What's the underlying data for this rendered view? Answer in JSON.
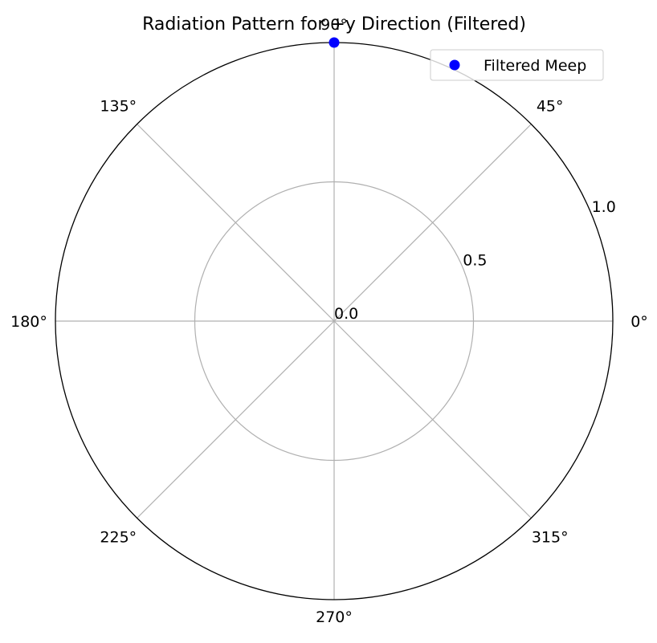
{
  "chart_data": {
    "type": "scatter",
    "projection": "polar",
    "title": "Radiation Pattern for +y Direction (Filtered)",
    "theta_unit": "degrees",
    "theta_tick_labels": [
      "0°",
      "45°",
      "90°",
      "135°",
      "180°",
      "225°",
      "270°",
      "315°"
    ],
    "theta_ticks": [
      0,
      45,
      90,
      135,
      180,
      225,
      270,
      315
    ],
    "r_tick_labels": [
      "0.0",
      "0.5",
      "1.0"
    ],
    "r_ticks": [
      0.0,
      0.5,
      1.0
    ],
    "rlim": [
      0,
      1.0
    ],
    "grid": true,
    "legend_position": "top-right",
    "series": [
      {
        "name": "Filtered Meep",
        "marker": "circle",
        "color": "#0000ff",
        "theta": [
          90
        ],
        "r": [
          1.0
        ]
      }
    ]
  },
  "colors": {
    "grid": "#b0b0b0",
    "spine": "#000000",
    "marker": "#0000ff",
    "background": "#ffffff"
  }
}
